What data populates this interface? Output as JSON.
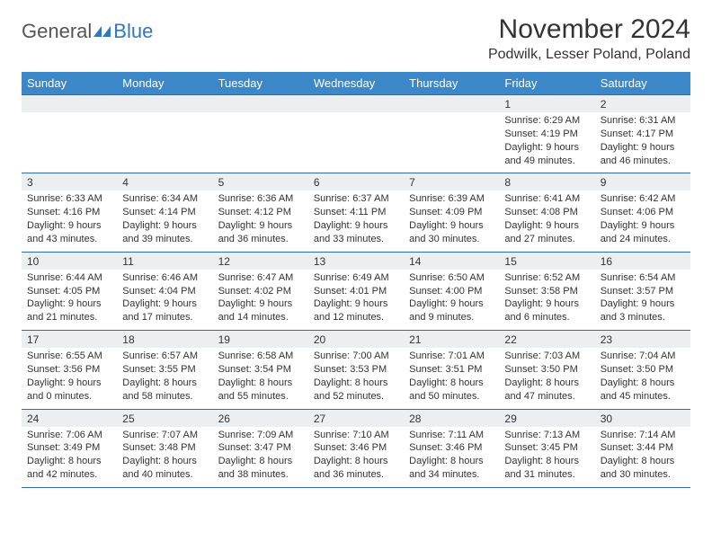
{
  "logo": {
    "general": "General",
    "blue": "Blue",
    "mark_color": "#2f78c0"
  },
  "title": "November 2024",
  "location": "Podwilk, Lesser Poland, Poland",
  "colors": {
    "header_bg": "#3b87c8",
    "header_text": "#ffffff",
    "daynum_bg": "#eceff1",
    "border": "#2f6da8",
    "text": "#333333"
  },
  "dayHeaders": [
    "Sunday",
    "Monday",
    "Tuesday",
    "Wednesday",
    "Thursday",
    "Friday",
    "Saturday"
  ],
  "weeks": [
    [
      null,
      null,
      null,
      null,
      null,
      {
        "n": "1",
        "sr": "6:29 AM",
        "ss": "4:19 PM",
        "dl": "9 hours and 49 minutes."
      },
      {
        "n": "2",
        "sr": "6:31 AM",
        "ss": "4:17 PM",
        "dl": "9 hours and 46 minutes."
      }
    ],
    [
      {
        "n": "3",
        "sr": "6:33 AM",
        "ss": "4:16 PM",
        "dl": "9 hours and 43 minutes."
      },
      {
        "n": "4",
        "sr": "6:34 AM",
        "ss": "4:14 PM",
        "dl": "9 hours and 39 minutes."
      },
      {
        "n": "5",
        "sr": "6:36 AM",
        "ss": "4:12 PM",
        "dl": "9 hours and 36 minutes."
      },
      {
        "n": "6",
        "sr": "6:37 AM",
        "ss": "4:11 PM",
        "dl": "9 hours and 33 minutes."
      },
      {
        "n": "7",
        "sr": "6:39 AM",
        "ss": "4:09 PM",
        "dl": "9 hours and 30 minutes."
      },
      {
        "n": "8",
        "sr": "6:41 AM",
        "ss": "4:08 PM",
        "dl": "9 hours and 27 minutes."
      },
      {
        "n": "9",
        "sr": "6:42 AM",
        "ss": "4:06 PM",
        "dl": "9 hours and 24 minutes."
      }
    ],
    [
      {
        "n": "10",
        "sr": "6:44 AM",
        "ss": "4:05 PM",
        "dl": "9 hours and 21 minutes."
      },
      {
        "n": "11",
        "sr": "6:46 AM",
        "ss": "4:04 PM",
        "dl": "9 hours and 17 minutes."
      },
      {
        "n": "12",
        "sr": "6:47 AM",
        "ss": "4:02 PM",
        "dl": "9 hours and 14 minutes."
      },
      {
        "n": "13",
        "sr": "6:49 AM",
        "ss": "4:01 PM",
        "dl": "9 hours and 12 minutes."
      },
      {
        "n": "14",
        "sr": "6:50 AM",
        "ss": "4:00 PM",
        "dl": "9 hours and 9 minutes."
      },
      {
        "n": "15",
        "sr": "6:52 AM",
        "ss": "3:58 PM",
        "dl": "9 hours and 6 minutes."
      },
      {
        "n": "16",
        "sr": "6:54 AM",
        "ss": "3:57 PM",
        "dl": "9 hours and 3 minutes."
      }
    ],
    [
      {
        "n": "17",
        "sr": "6:55 AM",
        "ss": "3:56 PM",
        "dl": "9 hours and 0 minutes."
      },
      {
        "n": "18",
        "sr": "6:57 AM",
        "ss": "3:55 PM",
        "dl": "8 hours and 58 minutes."
      },
      {
        "n": "19",
        "sr": "6:58 AM",
        "ss": "3:54 PM",
        "dl": "8 hours and 55 minutes."
      },
      {
        "n": "20",
        "sr": "7:00 AM",
        "ss": "3:53 PM",
        "dl": "8 hours and 52 minutes."
      },
      {
        "n": "21",
        "sr": "7:01 AM",
        "ss": "3:51 PM",
        "dl": "8 hours and 50 minutes."
      },
      {
        "n": "22",
        "sr": "7:03 AM",
        "ss": "3:50 PM",
        "dl": "8 hours and 47 minutes."
      },
      {
        "n": "23",
        "sr": "7:04 AM",
        "ss": "3:50 PM",
        "dl": "8 hours and 45 minutes."
      }
    ],
    [
      {
        "n": "24",
        "sr": "7:06 AM",
        "ss": "3:49 PM",
        "dl": "8 hours and 42 minutes."
      },
      {
        "n": "25",
        "sr": "7:07 AM",
        "ss": "3:48 PM",
        "dl": "8 hours and 40 minutes."
      },
      {
        "n": "26",
        "sr": "7:09 AM",
        "ss": "3:47 PM",
        "dl": "8 hours and 38 minutes."
      },
      {
        "n": "27",
        "sr": "7:10 AM",
        "ss": "3:46 PM",
        "dl": "8 hours and 36 minutes."
      },
      {
        "n": "28",
        "sr": "7:11 AM",
        "ss": "3:46 PM",
        "dl": "8 hours and 34 minutes."
      },
      {
        "n": "29",
        "sr": "7:13 AM",
        "ss": "3:45 PM",
        "dl": "8 hours and 31 minutes."
      },
      {
        "n": "30",
        "sr": "7:14 AM",
        "ss": "3:44 PM",
        "dl": "8 hours and 30 minutes."
      }
    ]
  ],
  "labels": {
    "sunrise": "Sunrise: ",
    "sunset": "Sunset: ",
    "daylight": "Daylight: "
  }
}
